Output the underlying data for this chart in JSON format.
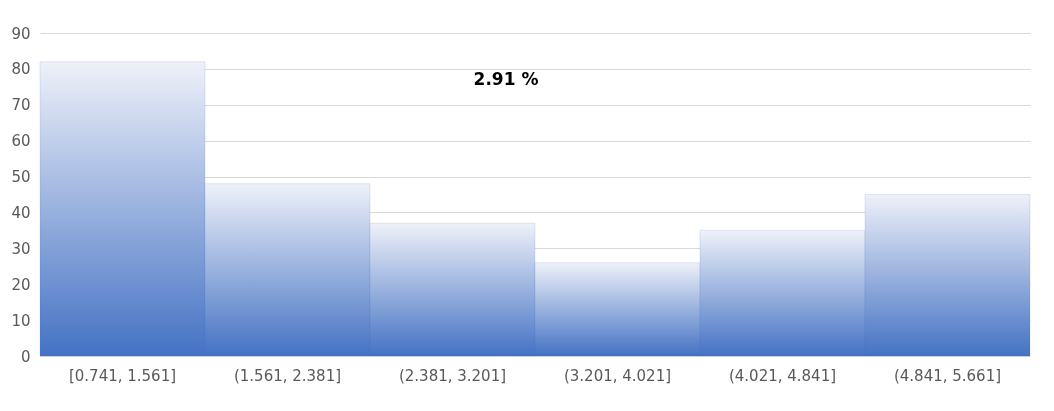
{
  "chart_data": {
    "type": "bar",
    "categories": [
      "[0.741, 1.561]",
      "(1.561, 2.381]",
      "(2.381, 3.201]",
      "(3.201, 4.021]",
      "(4.021, 4.841]",
      "(4.841, 5.661]"
    ],
    "values": [
      82,
      48,
      37,
      26,
      35,
      45
    ],
    "color": "#4472c4",
    "ylim": [
      0,
      90
    ],
    "yticks": [
      0,
      10,
      20,
      30,
      40,
      50,
      60,
      70,
      80,
      90
    ],
    "grid": "y",
    "annotations": [
      "2.91 %"
    ]
  }
}
